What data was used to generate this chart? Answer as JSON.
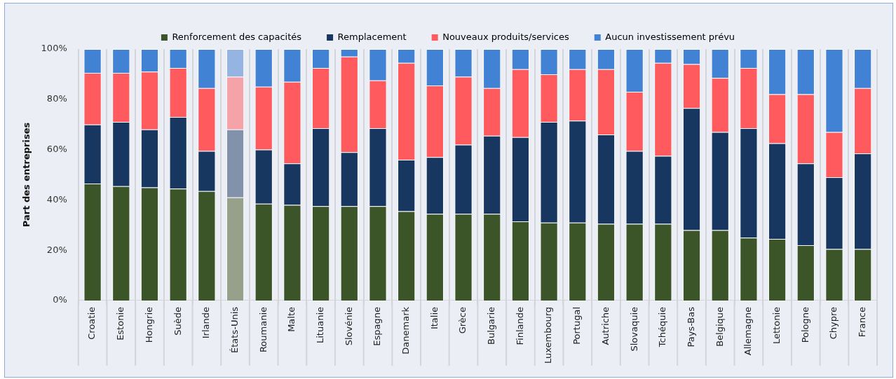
{
  "chart_data": {
    "type": "bar",
    "stacked": true,
    "ylabel": "Part des entreprises",
    "categories": [
      "Croatie",
      "Estonie",
      "Hongrie",
      "Suède",
      "Irlande",
      "États-Unis",
      "Roumanie",
      "Malte",
      "Lituanie",
      "Slovénie",
      "Espagne",
      "Danemark",
      "Italie",
      "Grèce",
      "Bulgarie",
      "Finlande",
      "Luxembourg",
      "Portugal",
      "Autriche",
      "Slovaquie",
      "Tchéquie",
      "Pays-Bas",
      "Belgique",
      "Allemagne",
      "Lettonie",
      "Pologne",
      "Chypre",
      "France"
    ],
    "series": [
      {
        "name": "Renforcement des capacités",
        "color": "#3b5428",
        "colors": [
          "#3b5428",
          "#3b5428",
          "#3b5428",
          "#3b5428",
          "#3b5428",
          "#97a08b",
          "#3b5428",
          "#3b5428",
          "#3b5428",
          "#3b5428",
          "#3b5428",
          "#3b5428",
          "#3b5428",
          "#3b5428",
          "#3b5428",
          "#3b5428",
          "#3b5428",
          "#3b5428",
          "#3b5428",
          "#3b5428",
          "#3b5428",
          "#3b5428",
          "#3b5428",
          "#3b5428",
          "#3b5428",
          "#3b5428",
          "#3b5428",
          "#3b5428"
        ],
        "values": [
          46.5,
          45.5,
          45,
          44.5,
          43.5,
          41,
          38.5,
          38,
          37.5,
          37.5,
          37.5,
          35.5,
          34.5,
          34.5,
          34.5,
          31.5,
          31,
          31,
          30.5,
          30.5,
          30.5,
          28,
          28,
          25,
          24.5,
          22,
          20.5,
          20.5
        ]
      },
      {
        "name": "Remplacement",
        "color": "#173660",
        "colors": [
          "#173660",
          "#173660",
          "#173660",
          "#173660",
          "#173660",
          "#8192aa",
          "#173660",
          "#173660",
          "#173660",
          "#173660",
          "#173660",
          "#173660",
          "#173660",
          "#173660",
          "#173660",
          "#173660",
          "#173660",
          "#173660",
          "#173660",
          "#173660",
          "#173660",
          "#173660",
          "#173660",
          "#173660",
          "#173660",
          "#173660",
          "#173660",
          "#173660"
        ],
        "values": [
          23.5,
          25.5,
          23,
          28.5,
          16,
          27,
          21.5,
          16.5,
          31,
          21.5,
          31,
          20.5,
          22.5,
          27.5,
          31,
          33.5,
          40,
          40.5,
          35.5,
          29,
          27,
          48.5,
          39,
          43.5,
          38,
          32.5,
          28.5,
          38
        ]
      },
      {
        "name": "Nouveaux produits/services",
        "color": "#ff5a5e",
        "colors": [
          "#ff5a5e",
          "#ff5a5e",
          "#ff5a5e",
          "#ff5a5e",
          "#ff5a5e",
          "#f5a3a8",
          "#ff5a5e",
          "#ff5a5e",
          "#ff5a5e",
          "#ff5a5e",
          "#ff5a5e",
          "#ff5a5e",
          "#ff5a5e",
          "#ff5a5e",
          "#ff5a5e",
          "#ff5a5e",
          "#ff5a5e",
          "#ff5a5e",
          "#ff5a5e",
          "#ff5a5e",
          "#ff5a5e",
          "#ff5a5e",
          "#ff5a5e",
          "#ff5a5e",
          "#ff5a5e",
          "#ff5a5e",
          "#ff5a5e",
          "#ff5a5e"
        ],
        "values": [
          20.5,
          19.5,
          23,
          19.5,
          25,
          21,
          25,
          32.5,
          24,
          38,
          19,
          38.5,
          28.5,
          27,
          19,
          27,
          19,
          20.5,
          26,
          23.5,
          37,
          17.5,
          21.5,
          24,
          19.5,
          27.5,
          18,
          26
        ]
      },
      {
        "name": "Aucun investissement prévu",
        "color": "#4282d4",
        "colors": [
          "#4282d4",
          "#4282d4",
          "#4282d4",
          "#4282d4",
          "#4282d4",
          "#95b4e1",
          "#4282d4",
          "#4282d4",
          "#4282d4",
          "#4282d4",
          "#4282d4",
          "#4282d4",
          "#4282d4",
          "#4282d4",
          "#4282d4",
          "#4282d4",
          "#4282d4",
          "#4282d4",
          "#4282d4",
          "#4282d4",
          "#4282d4",
          "#4282d4",
          "#4282d4",
          "#4282d4",
          "#4282d4",
          "#4282d4",
          "#4282d4",
          "#4282d4"
        ],
        "values": [
          9.5,
          9.5,
          9,
          7.5,
          15.5,
          11,
          15,
          13,
          7.5,
          3,
          12.5,
          5.5,
          14.5,
          11,
          15.5,
          8,
          10,
          8,
          8,
          17,
          5.5,
          6,
          11.5,
          7.5,
          18,
          18,
          33,
          15.5
        ]
      }
    ],
    "ylim": [
      0,
      100
    ],
    "yticks": [
      {
        "value": 0,
        "label": "0%"
      },
      {
        "value": 20,
        "label": "20%"
      },
      {
        "value": 40,
        "label": "40%"
      },
      {
        "value": 60,
        "label": "60%"
      },
      {
        "value": 80,
        "label": "80%"
      },
      {
        "value": 100,
        "label": "100%"
      }
    ],
    "grid": "x",
    "legend": "top"
  }
}
